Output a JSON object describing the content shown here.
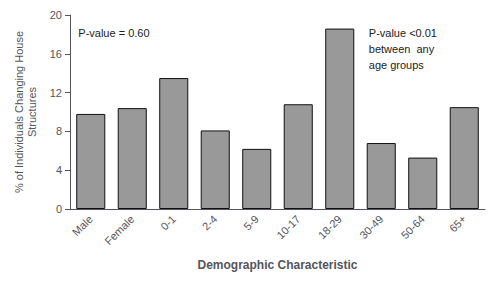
{
  "chart_data": {
    "type": "bar",
    "categories": [
      "Male",
      "Female",
      "0-1",
      "2-4",
      "5-9",
      "10-17",
      "18-29",
      "30-49",
      "50-64",
      "65+"
    ],
    "values": [
      9.8,
      10.4,
      13.5,
      8.1,
      6.2,
      10.8,
      18.6,
      6.8,
      5.3,
      10.5
    ],
    "color": "#999999",
    "xlabel": "Demographic Characteristic",
    "ylabel": "% of Individuals Changing House\nStructures",
    "ylim": [
      0,
      20
    ],
    "yticks": [
      0,
      4,
      8,
      12,
      16,
      20
    ],
    "grid": false,
    "annotations": [
      "P-value = 0.60",
      "P-value <0.01\nbetween  any\nage groups"
    ]
  }
}
